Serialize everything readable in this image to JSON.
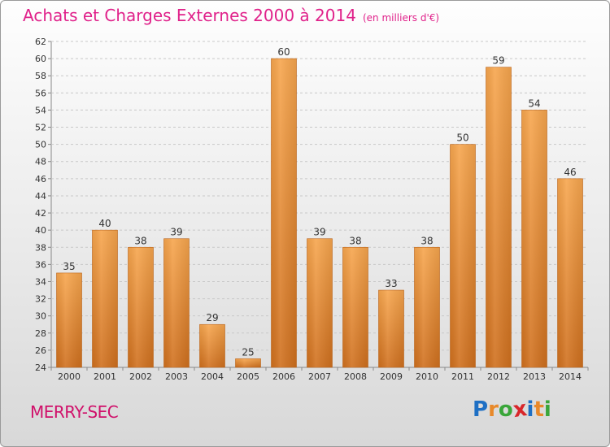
{
  "title": "Achats et Charges Externes 2000 à 2014",
  "subtitle": "(en milliers d'€)",
  "city": "MERRY-SEC",
  "logo": {
    "letters": [
      "P",
      "r",
      "o",
      "x",
      "i",
      "t",
      "i"
    ],
    "colors": [
      "#1e6fc4",
      "#e8892a",
      "#3aa63a",
      "#d8262a",
      "#1e6fc4",
      "#e8892a",
      "#3aa63a"
    ]
  },
  "colors": {
    "bar_top": "#f7a64e",
    "bar_bottom": "#d0701e",
    "grid": "#c8c8c8",
    "axis_text": "#333333"
  },
  "chart_data": {
    "type": "bar",
    "categories": [
      "2000",
      "2001",
      "2002",
      "2003",
      "2004",
      "2005",
      "2006",
      "2007",
      "2008",
      "2009",
      "2010",
      "2011",
      "2012",
      "2013",
      "2014"
    ],
    "values": [
      35,
      40,
      38,
      39,
      29,
      25,
      60,
      39,
      38,
      33,
      38,
      50,
      59,
      54,
      46
    ],
    "ylim": [
      24,
      62
    ],
    "yticks": [
      24,
      26,
      28,
      30,
      32,
      34,
      36,
      38,
      40,
      42,
      44,
      46,
      48,
      50,
      52,
      54,
      56,
      58,
      60,
      62
    ],
    "grid": true
  }
}
